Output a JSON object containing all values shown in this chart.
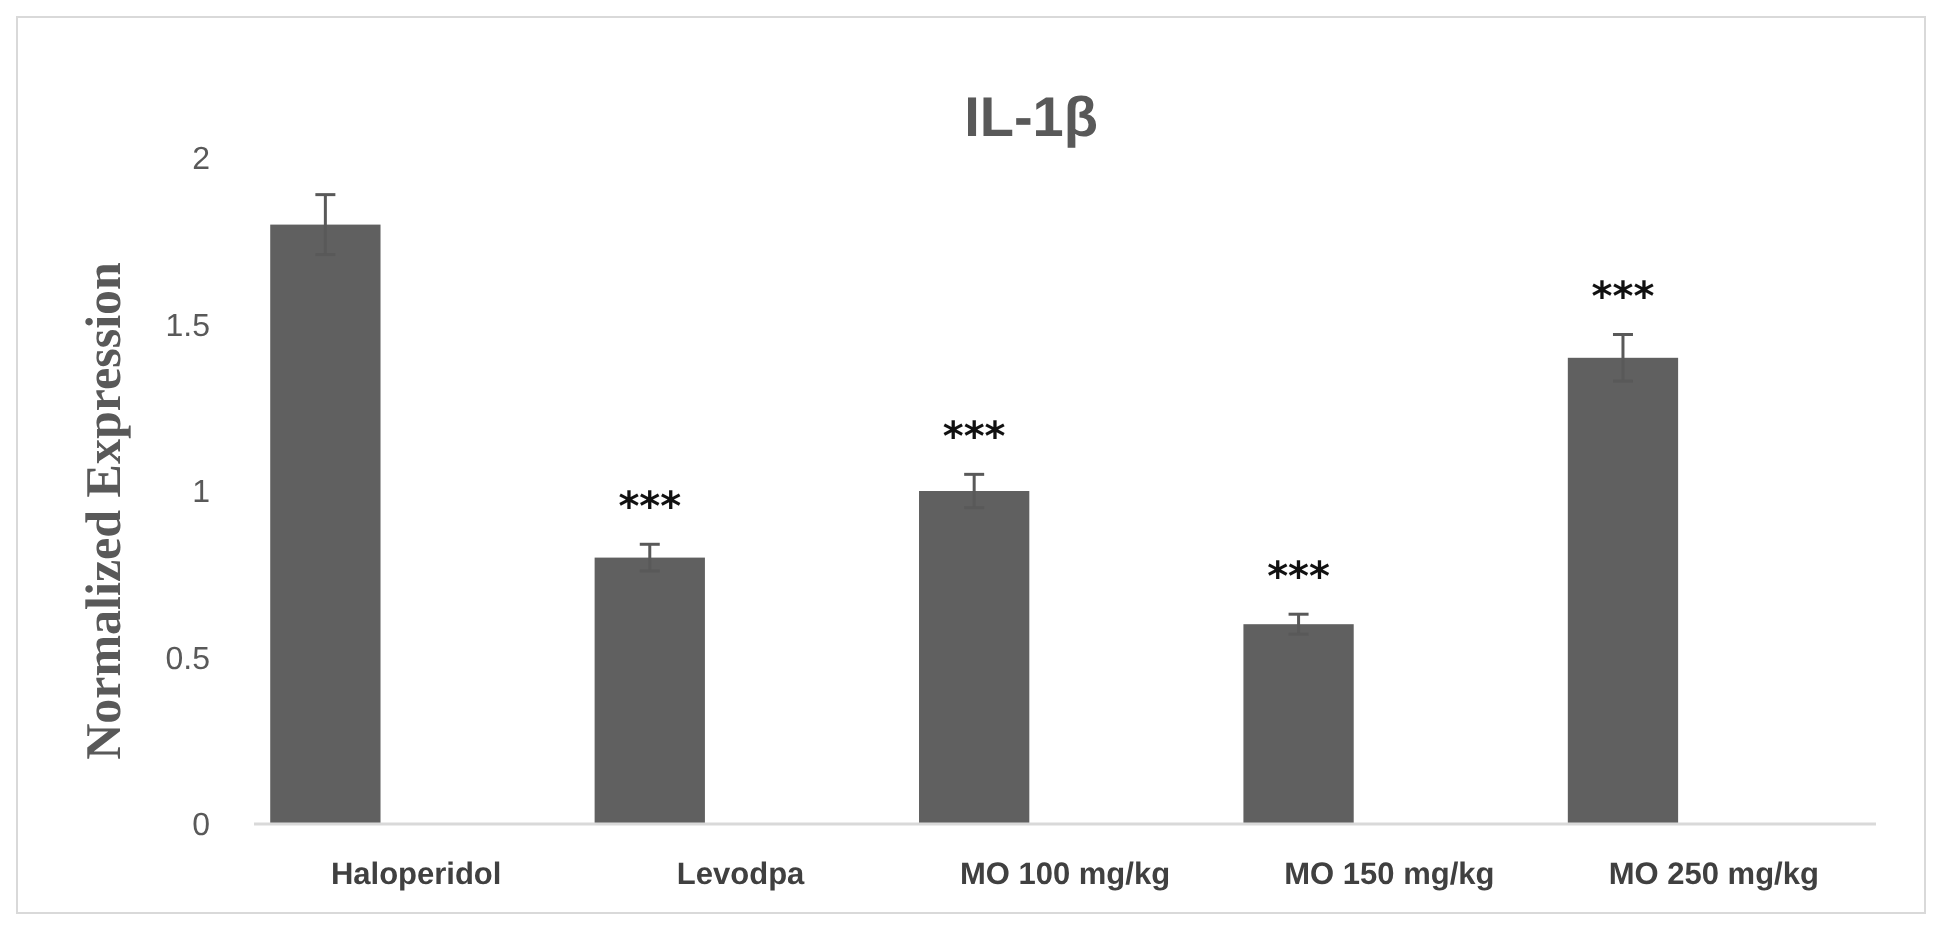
{
  "chart_data": {
    "type": "bar",
    "title": "IL-1β",
    "ylabel": "Normalized Expression",
    "categories": [
      "Haloperidol",
      "Levodpa",
      "MO 100 mg/kg",
      "MO 150 mg/kg",
      "MO 250 mg/kg"
    ],
    "values": [
      1.8,
      0.8,
      1.0,
      0.6,
      1.4
    ],
    "errors": [
      0.09,
      0.04,
      0.05,
      0.03,
      0.07
    ],
    "color": "#606060",
    "ylim": [
      0,
      2
    ],
    "yticks": [
      0,
      0.5,
      1,
      1.5,
      2
    ],
    "grid": false,
    "annotations": [
      "***",
      "***",
      "***",
      "***"
    ]
  }
}
